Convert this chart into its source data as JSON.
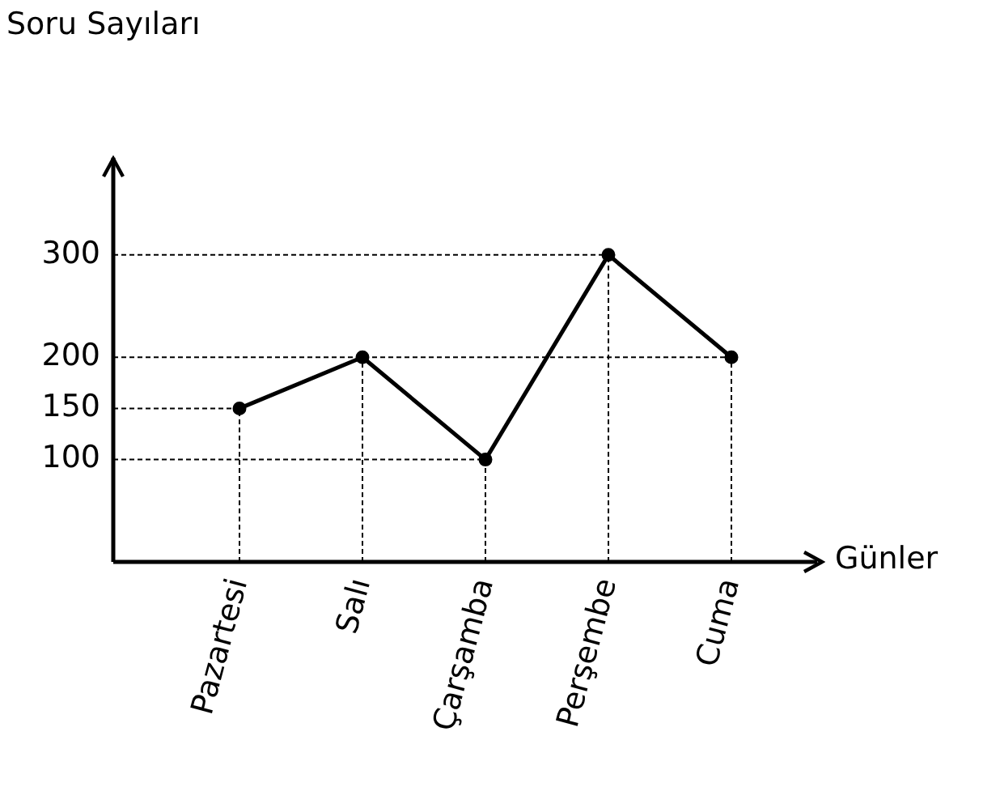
{
  "chart_data": {
    "type": "line",
    "xlabel": "Günler",
    "ylabel": "Soru Sayıları",
    "categories": [
      "Pazartesi",
      "Salı",
      "Çarşamba",
      "Perşembe",
      "Cuma"
    ],
    "series": [
      {
        "color": "#000000",
        "values": [
          150,
          200,
          100,
          300,
          200
        ]
      }
    ],
    "ref_lines": [
      {
        "axis": "y",
        "value": 100,
        "line_style": "dashed"
      },
      {
        "axis": "y",
        "value": 150,
        "line_style": "dashed"
      },
      {
        "axis": "y",
        "value": 200,
        "line_style": "dashed"
      },
      {
        "axis": "y",
        "value": 300,
        "line_style": "dashed"
      },
      {
        "axis": "x",
        "value": "Pazartesi",
        "line_style": "dashed"
      },
      {
        "axis": "x",
        "value": "Salı",
        "line_style": "dashed"
      },
      {
        "axis": "x",
        "value": "Çarşamba",
        "line_style": "dashed"
      },
      {
        "axis": "x",
        "value": "Perşembe",
        "line_style": "dashed"
      },
      {
        "axis": "x",
        "value": "Cuma",
        "line_style": "dashed"
      }
    ],
    "ylim": [
      0,
      395
    ],
    "yticks": [
      100,
      150,
      200,
      300
    ],
    "marker": "circle",
    "line_style": "solid",
    "legend": false,
    "grid": false
  }
}
